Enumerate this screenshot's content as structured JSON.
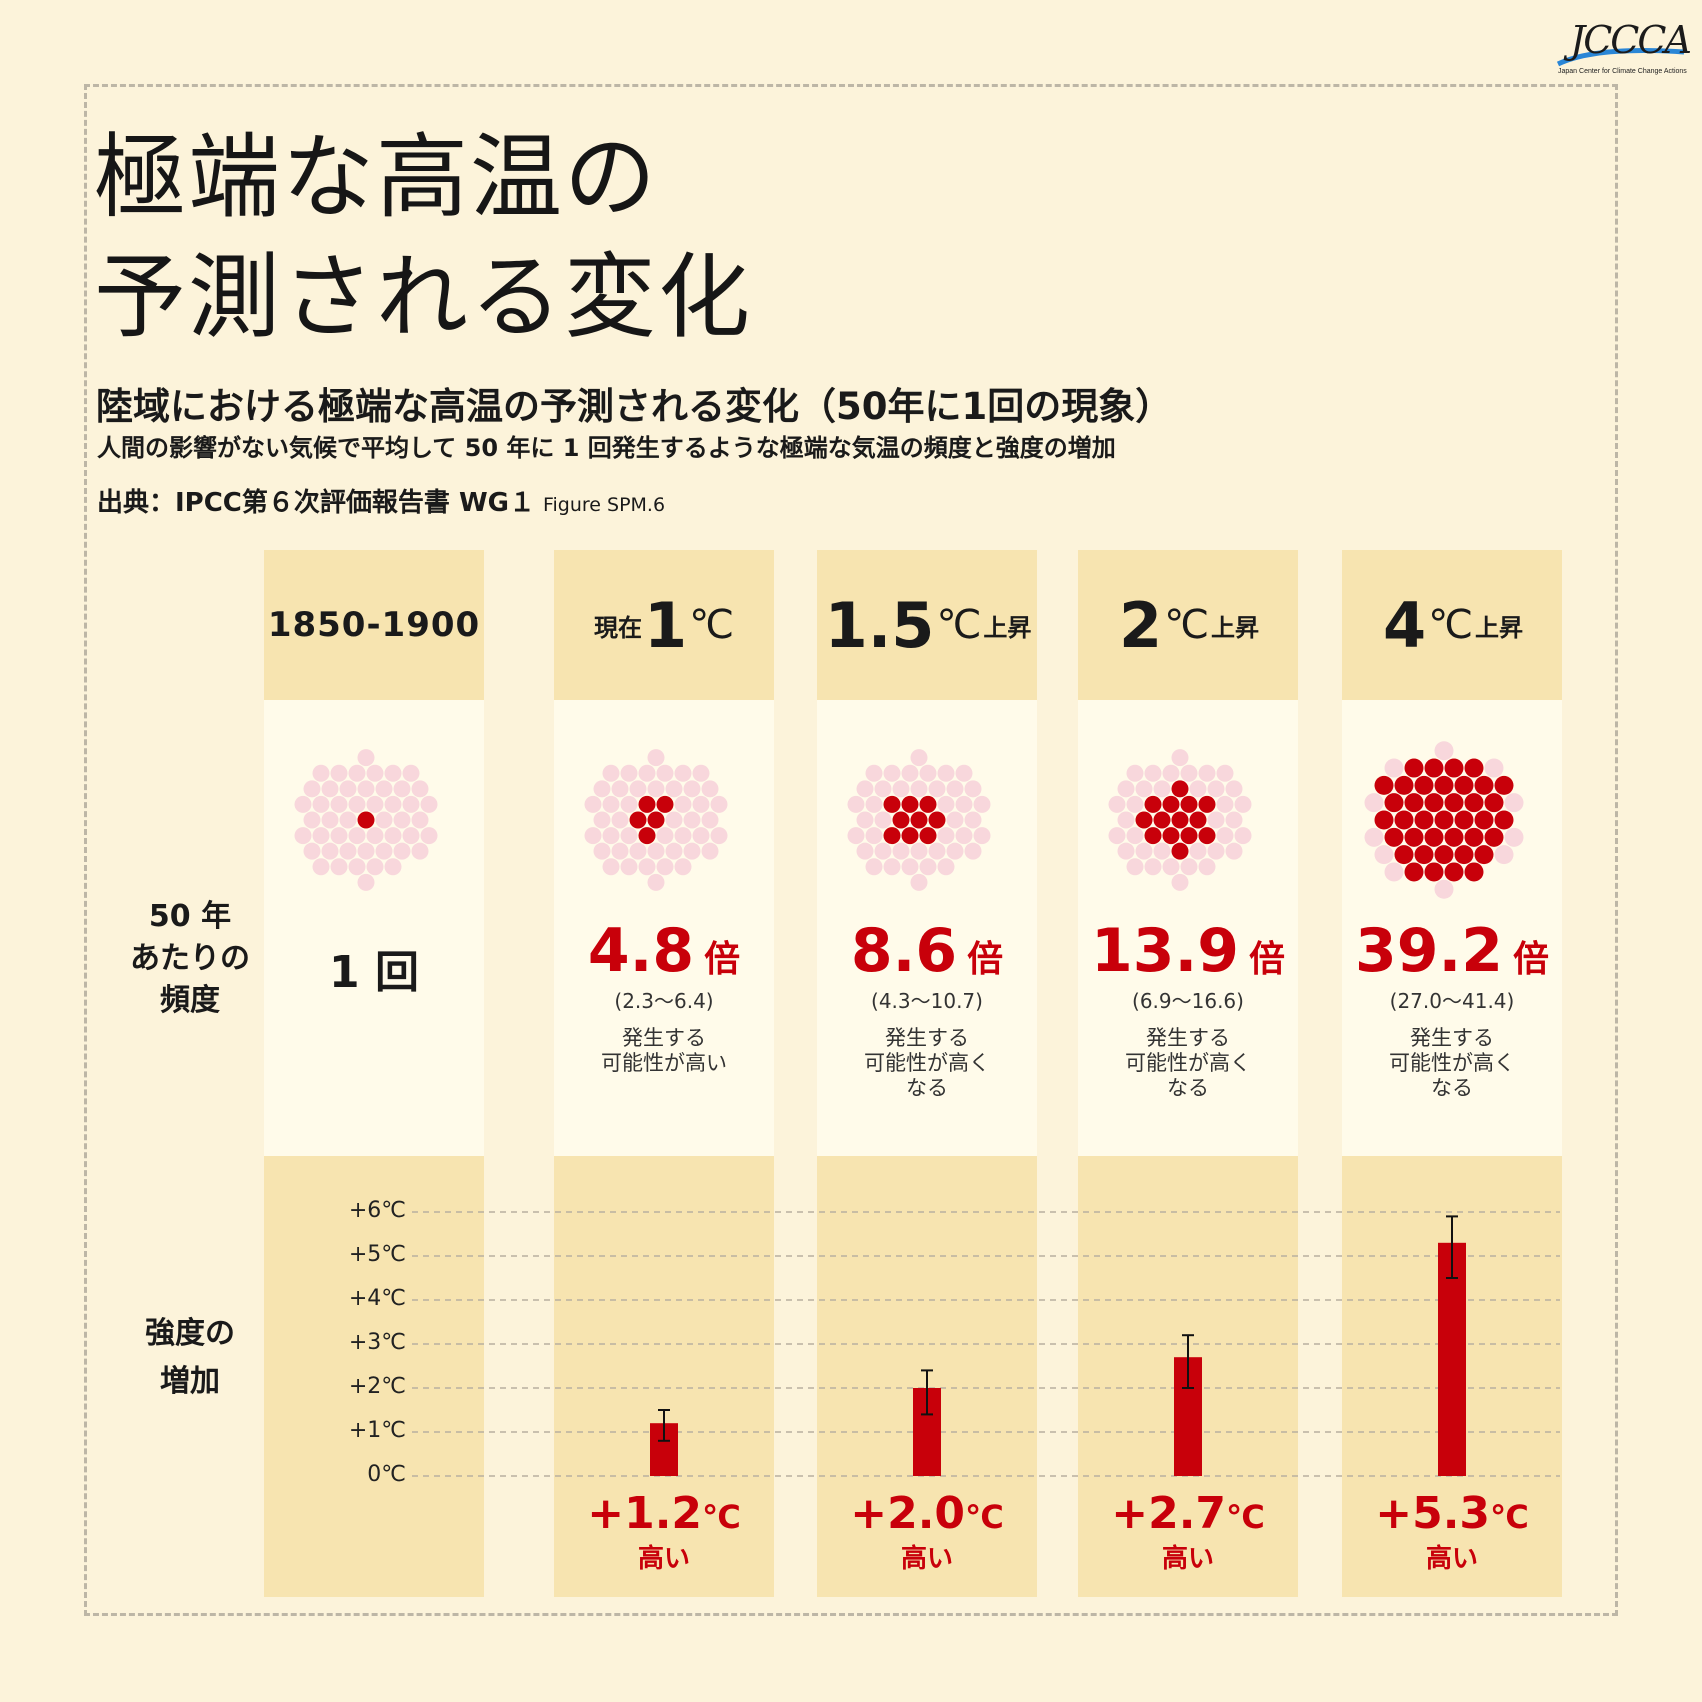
{
  "logo": {
    "text": "JCCCA",
    "sub": "Japan Center for Climate Change Actions"
  },
  "title": {
    "line1": "極端な高温の",
    "line2": "予測される変化"
  },
  "subtitle": "陸域における極端な高温の予測される変化（50年に1回の現象）",
  "description": "人間の影響がない気候で平均して 50 年に 1 回発生するような極端な気温の頻度と強度の増加",
  "source": {
    "main": "出典：IPCC第６次評価報告書 WG１",
    "figure": "Figure SPM.6"
  },
  "row_labels": {
    "frequency": [
      "50 年",
      "あたりの",
      "頻度"
    ],
    "intensity": [
      "強度の",
      "増加"
    ]
  },
  "columns": [
    {
      "id": "base",
      "header": {
        "text": "1850-1900"
      },
      "count_label": "1 回"
    },
    {
      "id": "1c",
      "header": {
        "prefix": "現在",
        "big": "1",
        "suffix": "℃"
      }
    },
    {
      "id": "1_5c",
      "header": {
        "prefix": "",
        "big": "1.5",
        "suffix": "℃",
        "tail": "上昇"
      }
    },
    {
      "id": "2c",
      "header": {
        "prefix": "",
        "big": "2",
        "suffix": "℃",
        "tail": "上昇"
      }
    },
    {
      "id": "4c",
      "header": {
        "prefix": "",
        "big": "4",
        "suffix": "℃",
        "tail": "上昇"
      }
    }
  ],
  "y_ticks": [
    "+6℃",
    "+5℃",
    "+4℃",
    "+3℃",
    "+2℃",
    "+1℃",
    "0℃"
  ],
  "colors": {
    "accent": "#c8000a",
    "dot_light": "#f8d7dc",
    "panel_dark": "#f7e4b0",
    "panel_light": "#fffbea"
  },
  "chart_data": [
    {
      "type": "scatter",
      "title": "50 年あたりの頻度",
      "categories": [
        "1850-1900",
        "現在1℃",
        "1.5℃上昇",
        "2℃上昇",
        "4℃上昇"
      ],
      "total_dots": 50,
      "highlighted_dots": [
        1,
        5,
        9,
        14,
        39
      ],
      "multipliers": [
        {
          "value": "",
          "unit": "",
          "range": "",
          "likelihood": []
        },
        {
          "value": "4.8",
          "unit": "倍",
          "range": "(2.3〜6.4)",
          "likelihood": [
            "発生する",
            "可能性が高い"
          ]
        },
        {
          "value": "8.6",
          "unit": "倍",
          "range": "(4.3〜10.7)",
          "likelihood": [
            "発生する",
            "可能性が高く",
            "なる"
          ]
        },
        {
          "value": "13.9",
          "unit": "倍",
          "range": "(6.9〜16.6)",
          "likelihood": [
            "発生する",
            "可能性が高く",
            "なる"
          ]
        },
        {
          "value": "39.2",
          "unit": "倍",
          "range": "(27.0〜41.4)",
          "likelihood": [
            "発生する",
            "可能性が高く",
            "なる"
          ]
        }
      ]
    },
    {
      "type": "bar",
      "title": "強度の増加",
      "categories": [
        "現在1℃",
        "1.5℃上昇",
        "2℃上昇",
        "4℃上昇"
      ],
      "values": [
        1.2,
        2.0,
        2.7,
        5.3
      ],
      "error_low": [
        0.8,
        1.4,
        2.0,
        4.5
      ],
      "error_high": [
        1.5,
        2.4,
        3.2,
        5.9
      ],
      "labels": [
        "+1.2",
        "+2.0",
        "+2.7",
        "+5.3"
      ],
      "label_unit": "℃",
      "label_sub": "高い",
      "ylim": [
        0,
        6
      ],
      "grid": true
    }
  ]
}
